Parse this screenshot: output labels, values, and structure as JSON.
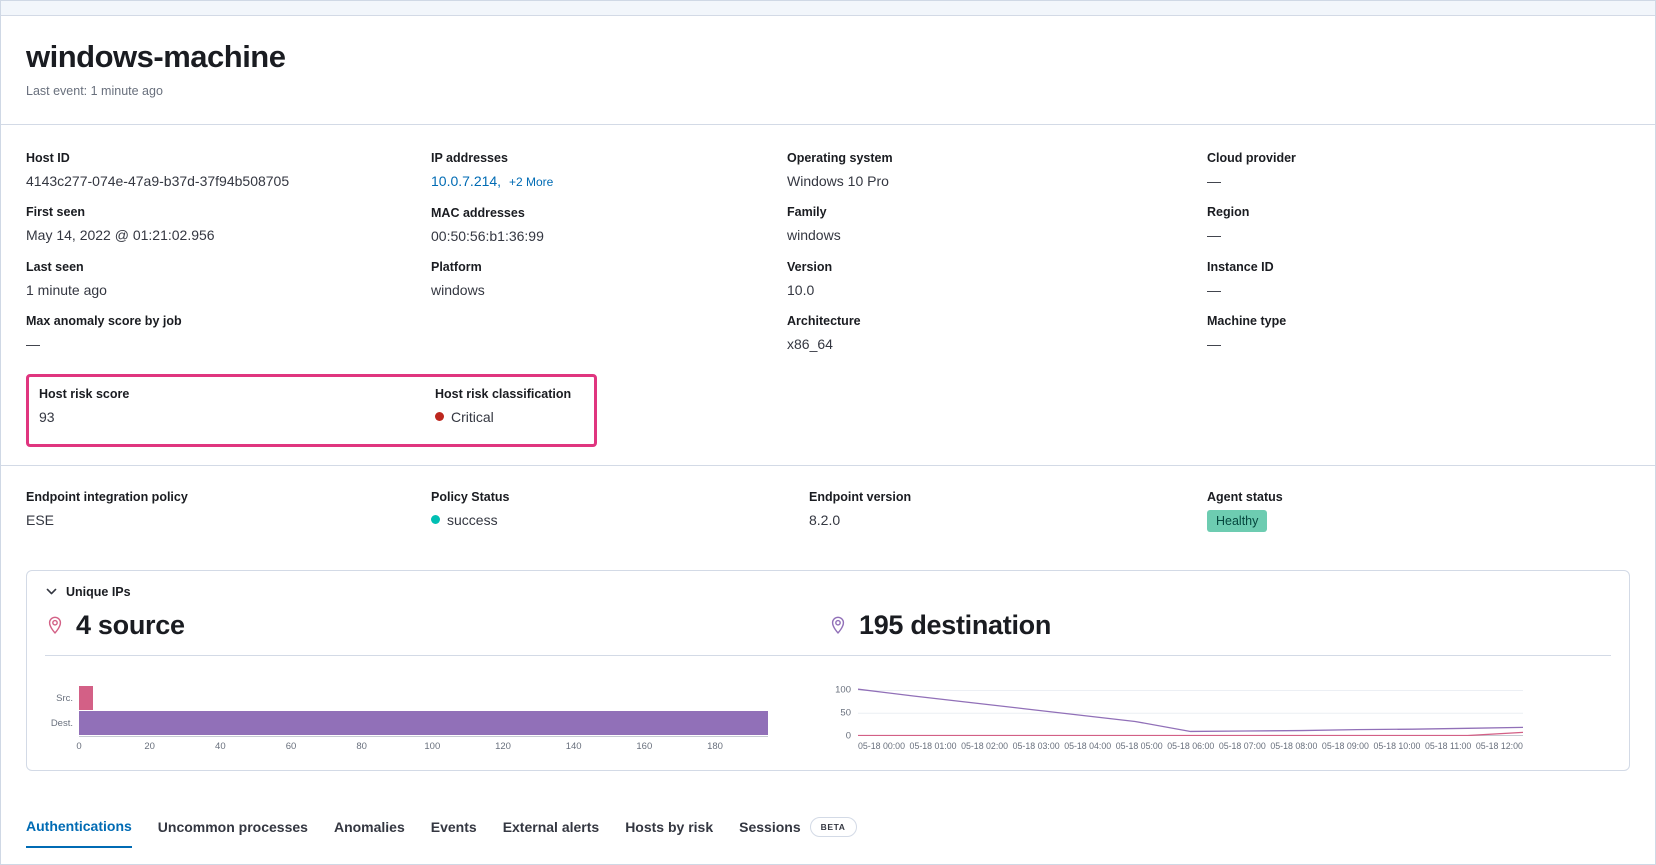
{
  "colors": {
    "highlight_pink": "#e0357f",
    "link_blue": "#006bb4",
    "source_pink": "#d36086",
    "destination_purple": "#9170b8",
    "success_teal": "#00bfb3",
    "critical_red": "#bd271e",
    "healthy_badge_bg": "#6dccb1"
  },
  "header": {
    "title": "windows-machine",
    "last_event": "Last event: 1 minute ago"
  },
  "overview": {
    "col1": [
      {
        "label": "Host ID",
        "value": "4143c277-074e-47a9-b37d-37f94b508705"
      },
      {
        "label": "First seen",
        "value": "May 14, 2022 @ 01:21:02.956"
      },
      {
        "label": "Last seen",
        "value": "1 minute ago"
      },
      {
        "label": "Max anomaly score by job",
        "value": "—"
      }
    ],
    "col2": [
      {
        "label": "IP addresses",
        "value": "10.0.7.214,",
        "extra": "+2 More"
      },
      {
        "label": "MAC addresses",
        "value": "00:50:56:b1:36:99"
      },
      {
        "label": "Platform",
        "value": "windows"
      }
    ],
    "col3": [
      {
        "label": "Operating system",
        "value": "Windows 10 Pro"
      },
      {
        "label": "Family",
        "value": "windows"
      },
      {
        "label": "Version",
        "value": "10.0"
      },
      {
        "label": "Architecture",
        "value": "x86_64"
      }
    ],
    "col4": [
      {
        "label": "Cloud provider",
        "value": "—"
      },
      {
        "label": "Region",
        "value": "—"
      },
      {
        "label": "Instance ID",
        "value": "—"
      },
      {
        "label": "Machine type",
        "value": "—"
      }
    ]
  },
  "risk": {
    "score_label": "Host risk score",
    "score_value": "93",
    "classification_label": "Host risk classification",
    "classification_value": "Critical"
  },
  "endpoint": {
    "policy_label": "Endpoint integration policy",
    "policy_value": "ESE",
    "status_label": "Policy Status",
    "status_value": "success",
    "version_label": "Endpoint version",
    "version_value": "8.2.0",
    "agent_label": "Agent status",
    "agent_value": "Healthy"
  },
  "unique_ips": {
    "panel_title": "Unique IPs",
    "source_stat": "4 source",
    "destination_stat": "195 destination"
  },
  "tabs": [
    {
      "label": "Authentications",
      "active": true
    },
    {
      "label": "Uncommon processes",
      "active": false
    },
    {
      "label": "Anomalies",
      "active": false
    },
    {
      "label": "Events",
      "active": false
    },
    {
      "label": "External alerts",
      "active": false
    },
    {
      "label": "Hosts by risk",
      "active": false
    },
    {
      "label": "Sessions",
      "active": false,
      "badge": "BETA"
    }
  ],
  "chart_data": [
    {
      "type": "bar",
      "orientation": "horizontal",
      "title": "Unique IPs: source vs destination",
      "categories": [
        "Src.",
        "Dest."
      ],
      "values": [
        4,
        195
      ],
      "colors": [
        "#d36086",
        "#9170b8"
      ],
      "x_ticks": [
        0,
        20,
        40,
        60,
        80,
        100,
        120,
        140,
        160,
        180
      ],
      "xmax": 195,
      "grid": false
    },
    {
      "type": "line",
      "title": "Unique destination IPs over time",
      "x": [
        "05-18 00:00",
        "05-18 01:00",
        "05-18 02:00",
        "05-18 03:00",
        "05-18 04:00",
        "05-18 05:00",
        "05-18 06:00",
        "05-18 07:00",
        "05-18 08:00",
        "05-18 09:00",
        "05-18 10:00",
        "05-18 11:00",
        "05-18 12:00"
      ],
      "series": [
        {
          "name": "destination",
          "color": "#9170b8",
          "values": [
            103,
            88,
            74,
            60,
            46,
            32,
            10,
            11,
            12,
            14,
            15,
            17,
            19
          ]
        },
        {
          "name": "source",
          "color": "#d36086",
          "values": [
            1,
            1,
            1,
            1,
            1,
            1,
            1,
            1,
            1,
            1,
            1,
            1,
            8
          ]
        }
      ],
      "y_ticks": [
        0,
        50,
        100
      ],
      "ymax": 110,
      "legend": "none",
      "grid": true
    }
  ]
}
